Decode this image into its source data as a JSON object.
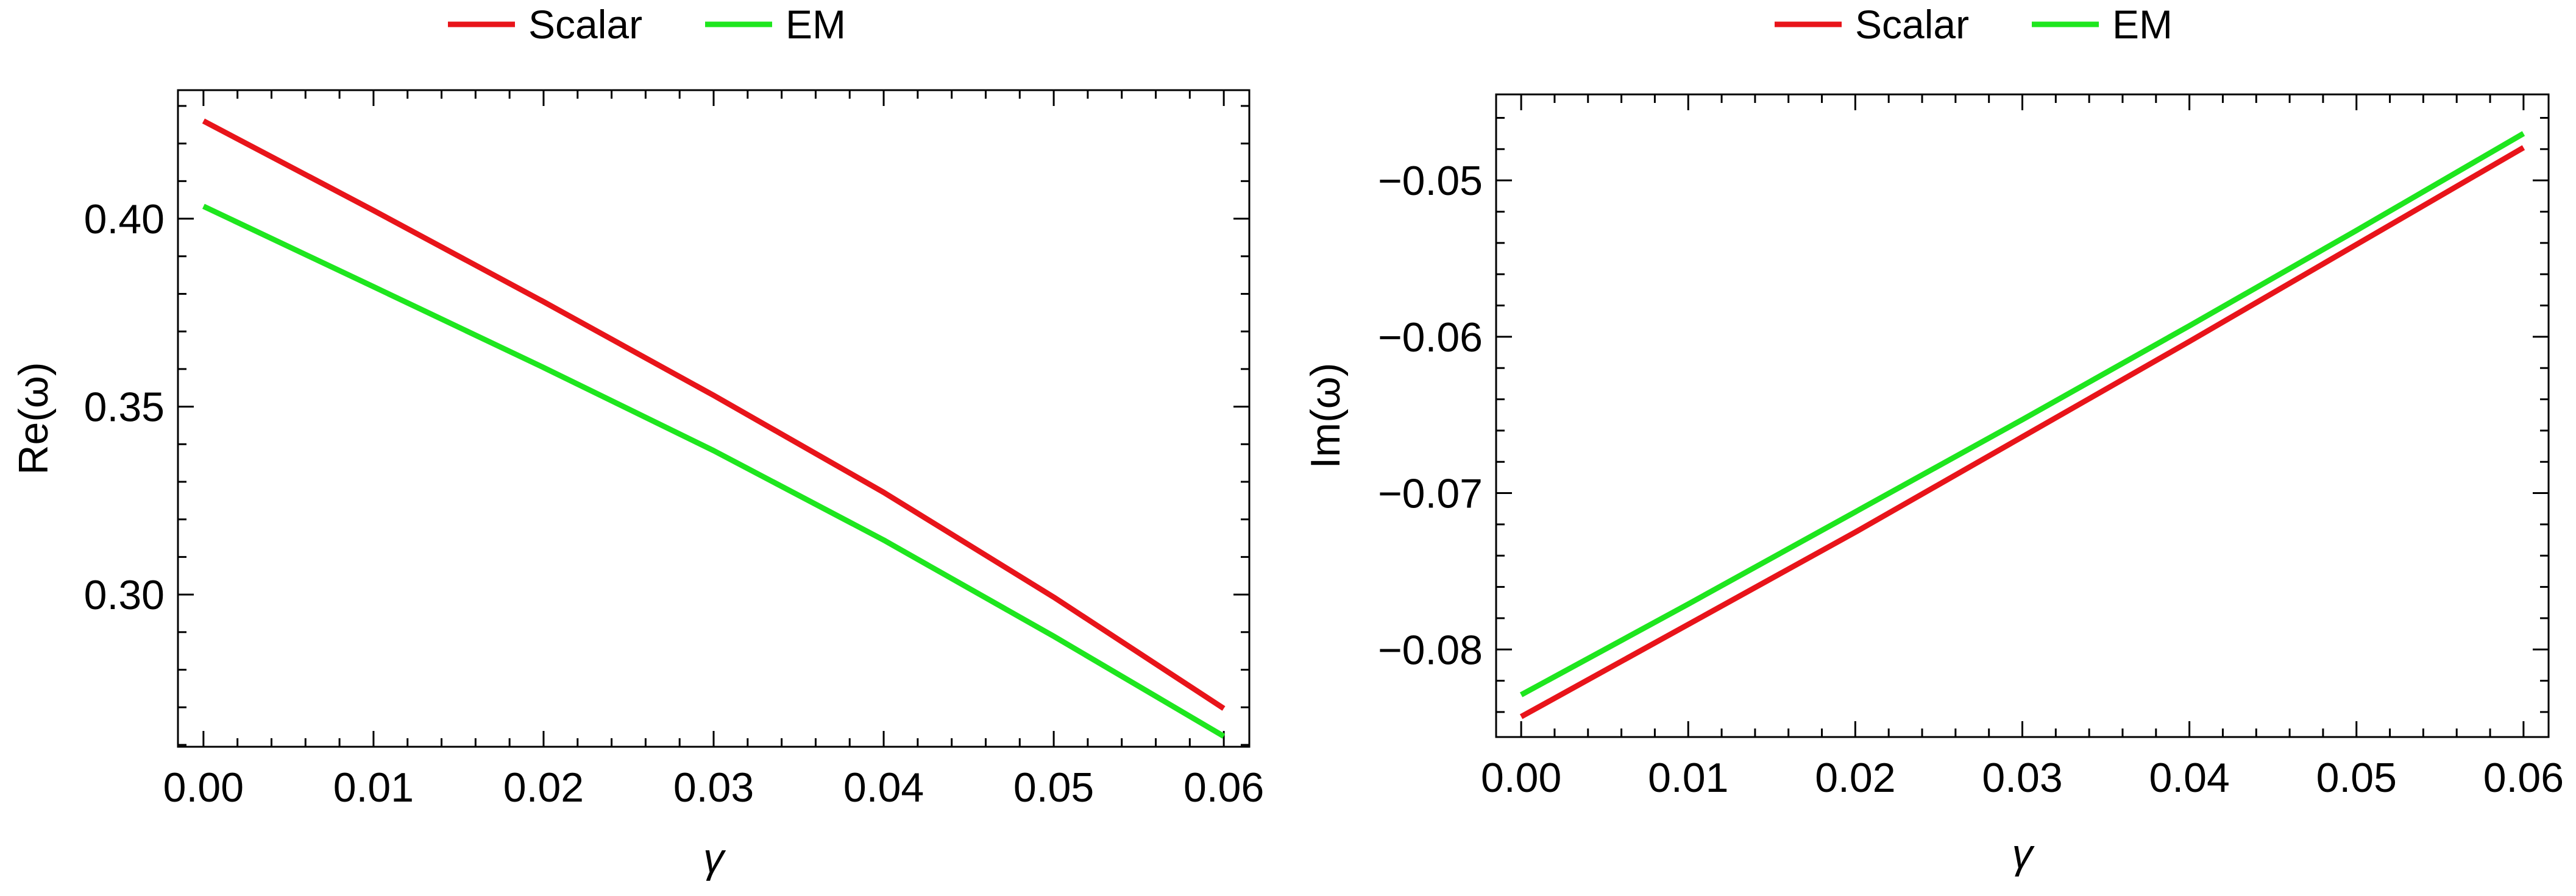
{
  "chart_data": [
    {
      "type": "line",
      "title": "",
      "xlabel": "γ",
      "ylabel": "Re(ω)",
      "xlim": [
        -0.0015,
        0.0615
      ],
      "ylim": [
        0.2595,
        0.4342
      ],
      "x_ticks": [
        0.0,
        0.01,
        0.02,
        0.03,
        0.04,
        0.05,
        0.06
      ],
      "x_tick_labels": [
        "0.00",
        "0.01",
        "0.02",
        "0.03",
        "0.04",
        "0.05",
        "0.06"
      ],
      "y_ticks": [
        0.3,
        0.35,
        0.4
      ],
      "y_tick_labels": [
        "0.30",
        "0.35",
        "0.40"
      ],
      "grid": false,
      "legend_position": "top-center",
      "legend": [
        "Scalar",
        "EM"
      ],
      "series": [
        {
          "name": "Scalar",
          "color": "#e8141a",
          "x": [
            0.0,
            0.01,
            0.02,
            0.03,
            0.04,
            0.05,
            0.06
          ],
          "y": [
            0.426,
            0.4022,
            0.3779,
            0.353,
            0.3272,
            0.2993,
            0.2697
          ]
        },
        {
          "name": "EM",
          "color": "#1ee61e",
          "x": [
            0.0,
            0.01,
            0.02,
            0.03,
            0.04,
            0.05,
            0.06
          ],
          "y": [
            0.4033,
            0.3819,
            0.3604,
            0.3383,
            0.3145,
            0.2889,
            0.2623
          ]
        }
      ]
    },
    {
      "type": "line",
      "title": "",
      "xlabel": "γ",
      "ylabel": "Im(ω)",
      "xlim": [
        -0.0015,
        0.0615
      ],
      "ylim": [
        -0.0856,
        -0.0445
      ],
      "x_ticks": [
        0.0,
        0.01,
        0.02,
        0.03,
        0.04,
        0.05,
        0.06
      ],
      "x_tick_labels": [
        "0.00",
        "0.01",
        "0.02",
        "0.03",
        "0.04",
        "0.05",
        "0.06"
      ],
      "y_ticks": [
        -0.08,
        -0.07,
        -0.06,
        -0.05
      ],
      "y_tick_labels": [
        "−0.08",
        "−0.07",
        "−0.06",
        "−0.05"
      ],
      "grid": false,
      "legend_position": "top-center",
      "legend": [
        "Scalar",
        "EM"
      ],
      "series": [
        {
          "name": "Scalar",
          "color": "#e8141a",
          "x": [
            0.0,
            0.01,
            0.02,
            0.03,
            0.04,
            0.05,
            0.06
          ],
          "y": [
            -0.0843,
            -0.0784,
            -0.0725,
            -0.0664,
            -0.0603,
            -0.0541,
            -0.0479
          ]
        },
        {
          "name": "EM",
          "color": "#1ee61e",
          "x": [
            0.0,
            0.01,
            0.02,
            0.03,
            0.04,
            0.05,
            0.06
          ],
          "y": [
            -0.0829,
            -0.0771,
            -0.0712,
            -0.0653,
            -0.0593,
            -0.0532,
            -0.047
          ]
        }
      ]
    }
  ]
}
